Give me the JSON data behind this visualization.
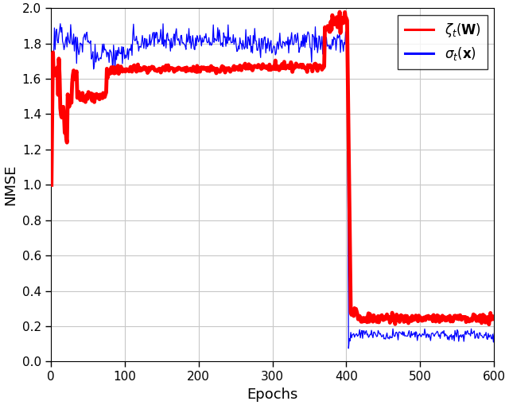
{
  "xlabel": "Epochs",
  "ylabel": "NMSE",
  "xlim": [
    0,
    600
  ],
  "ylim": [
    0,
    2
  ],
  "xticks": [
    0,
    100,
    200,
    300,
    400,
    500,
    600
  ],
  "yticks": [
    0,
    0.2,
    0.4,
    0.6,
    0.8,
    1.0,
    1.2,
    1.4,
    1.6,
    1.8,
    2.0
  ],
  "red_color": "#FF0000",
  "blue_color": "#0000FF",
  "background_color": "#FFFFFF",
  "grid_color": "#C8C8C8",
  "linewidth_red": 3.5,
  "linewidth_blue": 0.9,
  "n_points": 600,
  "seed_red": 11,
  "seed_blue": 22
}
